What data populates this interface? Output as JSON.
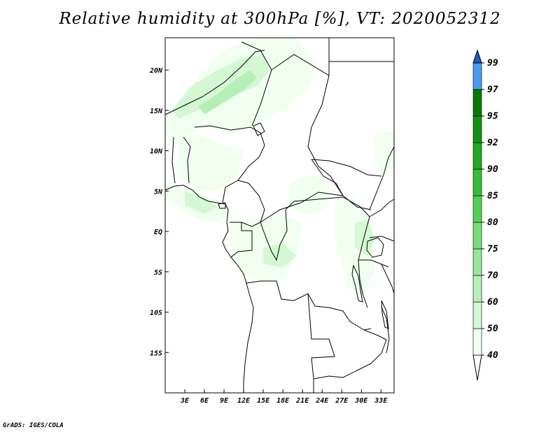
{
  "title": "Relative humidity at 300hPa [%], VT: 2020052312",
  "credit": "GrADS: IGES/COLA",
  "map": {
    "variable": "Relative humidity",
    "level": "300hPa",
    "units": "%",
    "valid_time": "2020052312",
    "lon_range": [
      0,
      35
    ],
    "lat_range": [
      -20,
      24
    ],
    "lat_ticks": [
      {
        "value": 20,
        "label": "20N"
      },
      {
        "value": 15,
        "label": "15N"
      },
      {
        "value": 10,
        "label": "10N"
      },
      {
        "value": 5,
        "label": "5N"
      },
      {
        "value": 0,
        "label": "EQ"
      },
      {
        "value": -5,
        "label": "5S"
      },
      {
        "value": -10,
        "label": "10S"
      },
      {
        "value": -15,
        "label": "15S"
      }
    ],
    "lon_ticks": [
      {
        "value": 3,
        "label": "3E"
      },
      {
        "value": 6,
        "label": "6E"
      },
      {
        "value": 9,
        "label": "9E"
      },
      {
        "value": 12,
        "label": "12E"
      },
      {
        "value": 15,
        "label": "15E"
      },
      {
        "value": 18,
        "label": "18E"
      },
      {
        "value": 21,
        "label": "21E"
      },
      {
        "value": 24,
        "label": "24E"
      },
      {
        "value": 27,
        "label": "27E"
      },
      {
        "value": 30,
        "label": "30E"
      },
      {
        "value": 33,
        "label": "33E"
      }
    ],
    "humid_areas": [
      {
        "level": 40,
        "pts": [
          [
            0,
            14
          ],
          [
            3,
            17
          ],
          [
            6,
            20
          ],
          [
            9,
            22.5
          ],
          [
            14,
            24
          ],
          [
            20,
            24
          ],
          [
            23,
            21
          ],
          [
            22,
            18
          ],
          [
            18,
            15
          ],
          [
            13,
            13
          ],
          [
            10,
            12
          ],
          [
            6,
            13
          ],
          [
            3,
            12
          ],
          [
            1,
            11
          ],
          [
            0,
            12
          ]
        ]
      },
      {
        "level": 50,
        "pts": [
          [
            1,
            15
          ],
          [
            4,
            18
          ],
          [
            8,
            20
          ],
          [
            12,
            21.5
          ],
          [
            15,
            22
          ],
          [
            16,
            20
          ],
          [
            14,
            18
          ],
          [
            11,
            17
          ],
          [
            8,
            16
          ],
          [
            5,
            15
          ],
          [
            2,
            14
          ]
        ]
      },
      {
        "level": 60,
        "pts": [
          [
            5,
            15.5
          ],
          [
            8,
            17
          ],
          [
            11,
            19
          ],
          [
            13,
            20
          ],
          [
            14,
            19
          ],
          [
            12,
            17.5
          ],
          [
            9,
            16
          ],
          [
            6,
            14.5
          ]
        ]
      },
      {
        "level": 40,
        "pts": [
          [
            2,
            12
          ],
          [
            5,
            12
          ],
          [
            8,
            11
          ],
          [
            12,
            10
          ],
          [
            11,
            7
          ],
          [
            8,
            5
          ],
          [
            5,
            5
          ],
          [
            2,
            7
          ],
          [
            2,
            10
          ]
        ]
      },
      {
        "level": 40,
        "pts": [
          [
            0,
            6
          ],
          [
            3,
            5.5
          ],
          [
            6,
            4.5
          ],
          [
            9,
            3.5
          ],
          [
            10,
            2
          ],
          [
            8,
            1
          ],
          [
            5,
            1.5
          ],
          [
            2,
            3
          ],
          [
            0,
            4
          ]
        ]
      },
      {
        "level": 50,
        "pts": [
          [
            3,
            5
          ],
          [
            6,
            4.2
          ],
          [
            8,
            3
          ],
          [
            6,
            2.2
          ],
          [
            3,
            3.2
          ]
        ]
      },
      {
        "level": 40,
        "pts": [
          [
            10,
            1
          ],
          [
            14,
            1.5
          ],
          [
            18,
            2
          ],
          [
            21,
            1
          ],
          [
            20,
            -3
          ],
          [
            18,
            -6
          ],
          [
            15,
            -6.5
          ],
          [
            12,
            -5
          ],
          [
            10,
            -3
          ]
        ]
      },
      {
        "level": 50,
        "pts": [
          [
            15,
            -2
          ],
          [
            18,
            -1.5
          ],
          [
            20,
            -3
          ],
          [
            18,
            -4.5
          ],
          [
            15,
            -4
          ]
        ]
      },
      {
        "level": 40,
        "pts": [
          [
            26,
            4
          ],
          [
            29,
            4
          ],
          [
            31,
            2
          ],
          [
            32,
            -1
          ],
          [
            32,
            -5
          ],
          [
            30,
            -8
          ],
          [
            28,
            -7
          ],
          [
            27,
            -4
          ],
          [
            26,
            -1
          ]
        ]
      },
      {
        "level": 50,
        "pts": [
          [
            29,
            1
          ],
          [
            31,
            1.5
          ],
          [
            32,
            -1
          ],
          [
            31,
            -3
          ],
          [
            29,
            -2
          ]
        ]
      },
      {
        "level": 40,
        "pts": [
          [
            19,
            6
          ],
          [
            22,
            7
          ],
          [
            25,
            6
          ],
          [
            25,
            3
          ],
          [
            22,
            2
          ],
          [
            19,
            3
          ]
        ]
      },
      {
        "level": 40,
        "pts": [
          [
            32,
            12
          ],
          [
            35,
            12.5
          ],
          [
            35,
            8
          ],
          [
            33,
            7
          ],
          [
            32,
            9
          ]
        ]
      }
    ]
  },
  "colorbar": {
    "levels": [
      {
        "value": "40",
        "color": "#f0fff0"
      },
      {
        "value": "50",
        "color": "#d4f7d4"
      },
      {
        "value": "60",
        "color": "#b6efb6"
      },
      {
        "value": "70",
        "color": "#98e698"
      },
      {
        "value": "75",
        "color": "#78dc78"
      },
      {
        "value": "80",
        "color": "#52d052"
      },
      {
        "value": "85",
        "color": "#36be36"
      },
      {
        "value": "90",
        "color": "#22a822"
      },
      {
        "value": "92",
        "color": "#129112"
      },
      {
        "value": "95",
        "color": "#067a06"
      },
      {
        "value": "97",
        "color": "#4a9af0"
      },
      {
        "value": "99",
        "color": "#2c76dc"
      }
    ],
    "below_color": "#ffffff",
    "above_color": "#1c5cc8"
  },
  "colors": {
    "border": "#000000",
    "background": "#ffffff"
  }
}
